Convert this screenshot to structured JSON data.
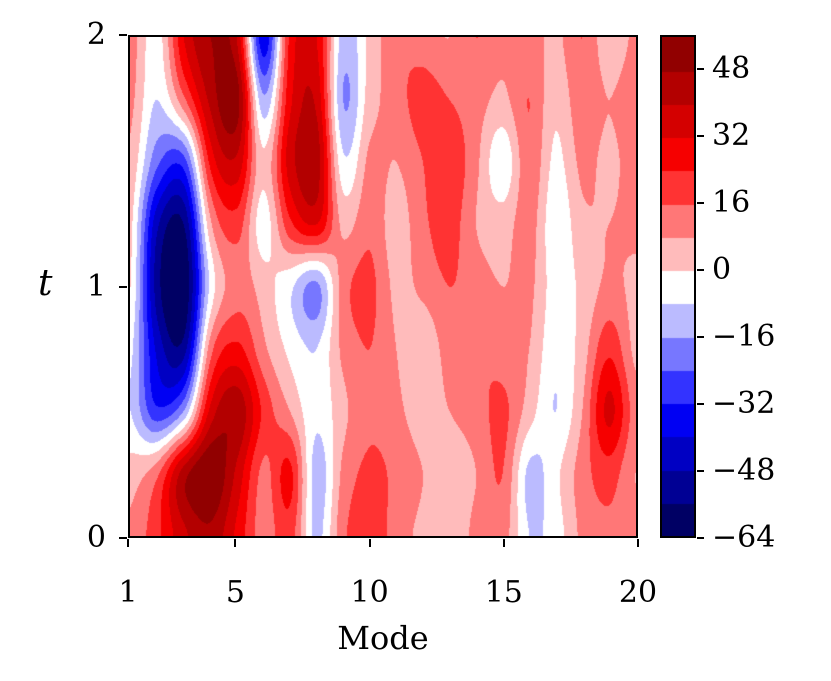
{
  "figure": {
    "xlabel": "Mode",
    "ylabel": "t",
    "x_range": [
      1,
      20
    ],
    "y_range": [
      0,
      2
    ],
    "x_ticks": [
      1,
      5,
      10,
      15,
      20
    ],
    "x_tick_labels": [
      "1",
      "5",
      "10",
      "15",
      "20"
    ],
    "y_ticks": [
      0,
      1,
      2
    ],
    "y_tick_labels": [
      "0",
      "1",
      "2"
    ]
  },
  "chart_data": {
    "type": "heatmap",
    "title": "",
    "xlabel": "Mode",
    "ylabel": "t",
    "x": [
      1,
      2,
      3,
      4,
      5,
      6,
      7,
      8,
      9,
      10,
      11,
      12,
      13,
      14,
      15,
      16,
      17,
      18,
      19,
      20
    ],
    "t": [
      0,
      0.25,
      0.5,
      0.75,
      1,
      1.25,
      1.5,
      1.75,
      2
    ],
    "values_order": "rows ordered from t=0 (bottom) to t=2 (top), columns Mode 1..20",
    "values": [
      [
        10,
        22,
        38,
        46,
        30,
        12,
        20,
        -10,
        14,
        22,
        12,
        6,
        2,
        10,
        12,
        -8,
        -4,
        10,
        14,
        10
      ],
      [
        4,
        14,
        44,
        56,
        38,
        14,
        26,
        -12,
        10,
        18,
        14,
        8,
        4,
        8,
        16,
        -10,
        -2,
        12,
        20,
        8
      ],
      [
        -8,
        -30,
        -16,
        34,
        46,
        22,
        8,
        -6,
        6,
        14,
        10,
        4,
        8,
        12,
        18,
        4,
        -8,
        8,
        34,
        12
      ],
      [
        -6,
        -42,
        -52,
        12,
        26,
        10,
        -2,
        -8,
        10,
        16,
        8,
        2,
        12,
        16,
        12,
        8,
        -6,
        4,
        22,
        6
      ],
      [
        0,
        -52,
        -64,
        -6,
        12,
        4,
        -6,
        -18,
        12,
        18,
        6,
        10,
        16,
        12,
        8,
        10,
        -4,
        2,
        10,
        6
      ],
      [
        2,
        -46,
        -56,
        6,
        20,
        -4,
        22,
        32,
        6,
        14,
        4,
        14,
        20,
        8,
        4,
        12,
        -6,
        6,
        8,
        10
      ],
      [
        6,
        -22,
        -28,
        26,
        38,
        2,
        36,
        44,
        -6,
        10,
        8,
        16,
        22,
        10,
        -6,
        14,
        -2,
        10,
        6,
        12
      ],
      [
        10,
        -8,
        14,
        42,
        52,
        -14,
        30,
        38,
        -16,
        4,
        12,
        20,
        16,
        12,
        6,
        16,
        2,
        14,
        8,
        14
      ],
      [
        12,
        -4,
        32,
        48,
        40,
        -38,
        26,
        32,
        -12,
        2,
        14,
        12,
        8,
        16,
        10,
        12,
        6,
        16,
        2,
        10
      ]
    ],
    "levels": {
      "min": -64,
      "max": 56,
      "step": 8
    },
    "colormap": "seismic (blue-white-red diverging)",
    "colorbar_ticks": [
      48,
      32,
      16,
      0,
      -16,
      -32,
      -48,
      -64
    ],
    "colorbar_tick_labels": [
      "48",
      "32",
      "16",
      "0",
      "−16",
      "−32",
      "−48",
      "−64"
    ],
    "grid": false,
    "legend": "colorbar-right"
  }
}
